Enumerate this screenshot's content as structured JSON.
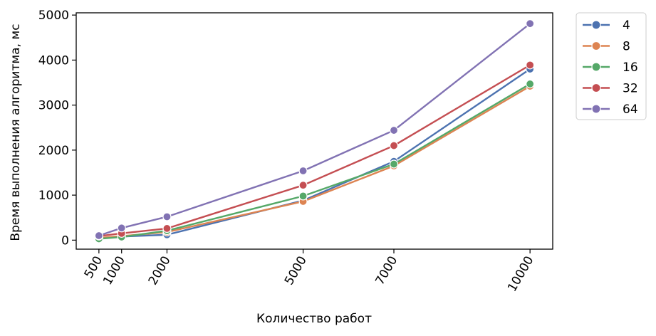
{
  "chart_data": {
    "type": "line",
    "xlabel": "Количество работ",
    "ylabel": "Время выполнения алгоритма, мс",
    "x": [
      500,
      1000,
      2000,
      5000,
      7000,
      10000
    ],
    "x_tick_labels": [
      "500",
      "1000",
      "2000",
      "5000",
      "7000",
      "10000"
    ],
    "xlim": [
      0,
      10500
    ],
    "ylim": [
      -200,
      5050
    ],
    "y_ticks": [
      0,
      1000,
      2000,
      3000,
      4000,
      5000
    ],
    "y_tick_labels": [
      "0",
      "1000",
      "2000",
      "3000",
      "4000",
      "5000"
    ],
    "grid": false,
    "legend_position": "outside-top-right",
    "series": [
      {
        "name": "4",
        "color": "#4c72b0",
        "values": [
          40,
          80,
          120,
          880,
          1750,
          3800
        ]
      },
      {
        "name": "8",
        "color": "#dd8452",
        "values": [
          50,
          90,
          180,
          860,
          1650,
          3420
        ]
      },
      {
        "name": "16",
        "color": "#55a868",
        "values": [
          30,
          70,
          210,
          980,
          1690,
          3470
        ]
      },
      {
        "name": "32",
        "color": "#c44e52",
        "values": [
          90,
          150,
          260,
          1220,
          2100,
          3890
        ]
      },
      {
        "name": "64",
        "color": "#8172b3",
        "values": [
          100,
          270,
          520,
          1540,
          2440,
          4810
        ]
      }
    ]
  }
}
